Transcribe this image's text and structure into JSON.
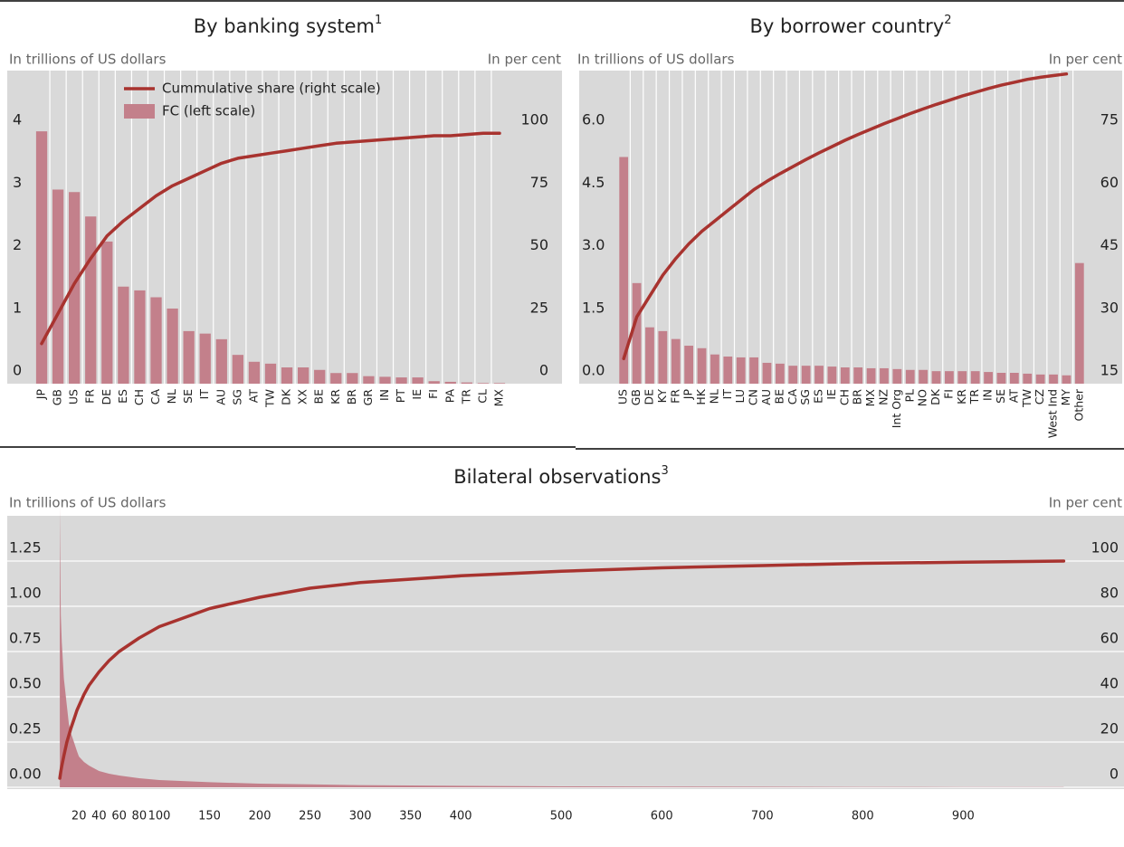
{
  "chart_data": [
    {
      "type": "bar",
      "title": "By banking system",
      "title_footnote": "1",
      "y_label": "In trillions of US dollars",
      "y2_label": "In per cent",
      "categories": [
        "JP",
        "GB",
        "US",
        "FR",
        "DE",
        "ES",
        "CH",
        "CA",
        "NL",
        "SE",
        "IT",
        "AU",
        "SG",
        "AT",
        "TW",
        "DK",
        "XX",
        "BE",
        "KR",
        "BR",
        "GR",
        "IN",
        "PT",
        "IE",
        "FI",
        "PA",
        "TR",
        "CL",
        "MX"
      ],
      "series": [
        {
          "name": "Cummulative share (right scale)",
          "type": "line",
          "axis": "y2",
          "color": "#a8332f",
          "values": [
            16,
            28,
            40,
            50,
            59,
            65,
            70,
            75,
            79,
            82,
            85,
            88,
            90,
            91,
            92,
            93,
            94,
            95,
            96,
            96.5,
            97,
            97.5,
            98,
            98.5,
            99,
            99,
            99.5,
            100,
            100
          ]
        },
        {
          "name": "FC (left scale)",
          "type": "bar",
          "color": "#c3808b",
          "values": [
            4.03,
            3.1,
            3.06,
            2.67,
            2.27,
            1.55,
            1.49,
            1.38,
            1.2,
            0.84,
            0.8,
            0.71,
            0.46,
            0.35,
            0.32,
            0.26,
            0.26,
            0.22,
            0.17,
            0.17,
            0.12,
            0.11,
            0.1,
            0.1,
            0.04,
            0.03,
            0.02,
            0.01,
            0.01
          ]
        }
      ],
      "ylim": [
        0,
        5
      ],
      "yticks": [
        0,
        1,
        2,
        3,
        4
      ],
      "y2lim": [
        0,
        125
      ],
      "y2ticks": [
        0,
        25,
        50,
        75,
        100
      ],
      "grid": "x",
      "legend": "upper left"
    },
    {
      "type": "bar",
      "title": "By borrower country",
      "title_footnote": "2",
      "y_label": "In trillions of US dollars",
      "y2_label": "In per cent",
      "categories": [
        "US",
        "GB",
        "DE",
        "KY",
        "FR",
        "JP",
        "HK",
        "NL",
        "IT",
        "LU",
        "CN",
        "AU",
        "BE",
        "CA",
        "SG",
        "ES",
        "IE",
        "CH",
        "BR",
        "MX",
        "NZ",
        "Int Org",
        "PL",
        "NO",
        "DK",
        "FI",
        "KR",
        "TR",
        "IN",
        "SE",
        "AT",
        "TW",
        "CZ",
        "West Ind",
        "MY",
        "Other"
      ],
      "series": [
        {
          "type": "line",
          "axis": "y2",
          "color": "#a8332f",
          "values": [
            21,
            31,
            36,
            41,
            45,
            48.5,
            51.5,
            54,
            56.5,
            59,
            61.5,
            63.5,
            65.3,
            67,
            68.7,
            70.3,
            71.8,
            73.3,
            74.7,
            76,
            77.3,
            78.5,
            79.7,
            80.8,
            81.9,
            82.9,
            83.9,
            84.8,
            85.7,
            86.5,
            87.2,
            87.9,
            88.4,
            88.8,
            89.2,
            null
          ]
        },
        {
          "type": "bar",
          "color": "#c3808b",
          "values": [
            5.43,
            2.41,
            1.35,
            1.26,
            1.07,
            0.91,
            0.85,
            0.7,
            0.65,
            0.63,
            0.63,
            0.5,
            0.48,
            0.43,
            0.43,
            0.43,
            0.41,
            0.39,
            0.39,
            0.37,
            0.37,
            0.35,
            0.33,
            0.33,
            0.3,
            0.3,
            0.3,
            0.3,
            0.28,
            0.26,
            0.26,
            0.24,
            0.22,
            0.22,
            0.2,
            2.89
          ]
        }
      ],
      "ylim": [
        0,
        7.5
      ],
      "yticks": [
        {
          "value": 0,
          "label": "0.0"
        },
        1.5,
        {
          "value": 3,
          "label": "3.0"
        },
        4.5,
        {
          "value": 6,
          "label": "6.0"
        }
      ],
      "y2lim": [
        15,
        90
      ],
      "y2ticks": [
        15,
        30,
        45,
        60,
        75
      ],
      "grid": "x"
    },
    {
      "type": "area",
      "title": "Bilateral observations",
      "title_footnote": "3",
      "y_label": "In trillions of US dollars",
      "y2_label": "In per cent",
      "x": [
        1,
        2,
        3,
        5,
        8,
        10,
        12,
        15,
        18,
        20,
        25,
        30,
        40,
        50,
        60,
        80,
        100,
        150,
        200,
        250,
        300,
        400,
        500,
        600,
        700,
        800,
        900,
        1000
      ],
      "series": [
        {
          "type": "area",
          "color": "#c3808b",
          "values": [
            1.55,
            0.95,
            0.8,
            0.6,
            0.45,
            0.35,
            0.3,
            0.25,
            0.2,
            0.17,
            0.14,
            0.12,
            0.09,
            0.075,
            0.065,
            0.05,
            0.04,
            0.028,
            0.02,
            0.016,
            0.012,
            0.008,
            0.005,
            0.004,
            0.003,
            0.002,
            0.0015,
            0.001
          ]
        },
        {
          "type": "line",
          "axis": "y2",
          "color": "#a8332f",
          "values": [
            4,
            7,
            9.5,
            14,
            20,
            23,
            26,
            30,
            34,
            36,
            41,
            45,
            51,
            56,
            60,
            66,
            71,
            79,
            84,
            88,
            90.5,
            93.5,
            95.5,
            97,
            98,
            99,
            99.5,
            100
          ]
        }
      ],
      "xlim": [
        0,
        1060
      ],
      "xticks": [
        20,
        40,
        60,
        80,
        100,
        150,
        200,
        250,
        300,
        350,
        400,
        500,
        600,
        700,
        800,
        900
      ],
      "ylim": [
        0,
        1.5
      ],
      "yticks": [
        {
          "value": 0,
          "label": "0.00"
        },
        0.25,
        {
          "value": 0.5,
          "label": "0.50"
        },
        0.75,
        {
          "value": 1,
          "label": "1.00"
        },
        1.25
      ],
      "y2lim": [
        0,
        120
      ],
      "y2ticks": [
        0,
        20,
        40,
        60,
        80,
        100
      ],
      "grid": "y"
    }
  ]
}
